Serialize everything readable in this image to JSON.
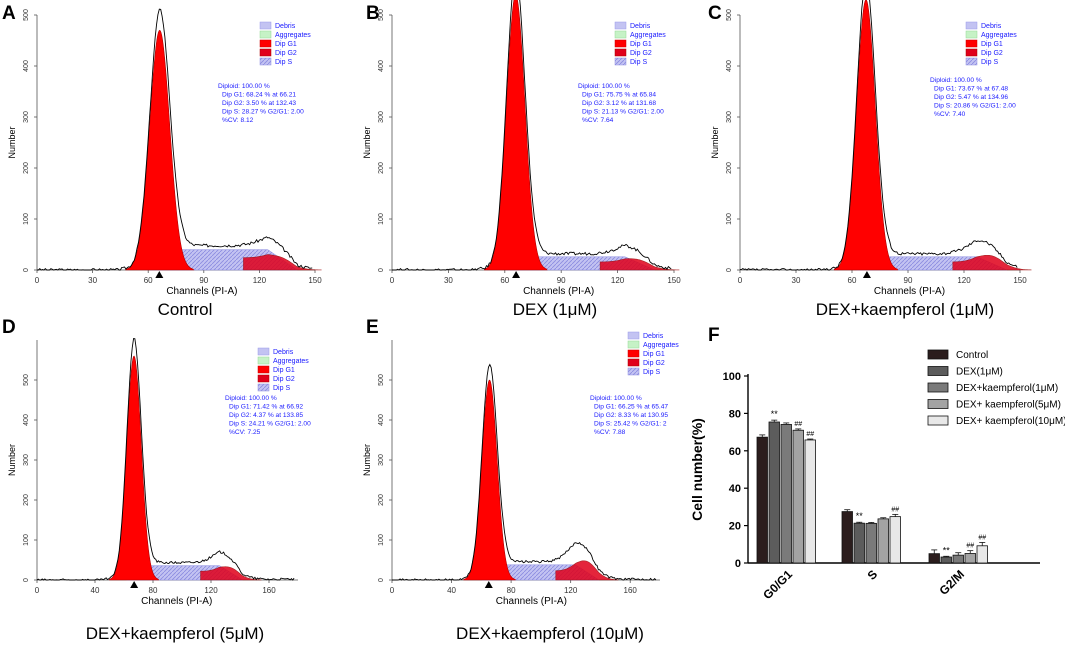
{
  "panels": [
    {
      "letter": "A",
      "caption": "Control",
      "xlabel": "Channels (PI-A)",
      "ylabel": "Number",
      "xticks": [
        "0",
        "30",
        "60",
        "90",
        "120",
        "150"
      ],
      "xmax": 150,
      "yticks": [
        "0",
        "100",
        "200",
        "300",
        "400",
        "500"
      ],
      "ymax": 500,
      "legend": [
        "Debris",
        "Aggregates",
        "Dip G1",
        "Dip G2",
        "Dip S"
      ],
      "stats": [
        "Diploid: 100.00 %",
        "Dip G1: 68.24 % at 66.21",
        "Dip G2: 3.50 % at 132.43",
        "Dip S: 28.27 %    G2/G1: 2.00",
        "%CV: 8.12"
      ],
      "g1": {
        "mu": 66.2,
        "sd": 5.4,
        "peak": 470
      },
      "g2": {
        "mu": 132.4,
        "sd": 7,
        "peak": 12
      },
      "s": {
        "h": 40
      },
      "marker": 66
    },
    {
      "letter": "B",
      "caption": "DEX (1μM)",
      "xlabel": "Channels (PI-A)",
      "ylabel": "Number",
      "xticks": [
        "0",
        "30",
        "60",
        "90",
        "120",
        "150"
      ],
      "xmax": 150,
      "yticks": [
        "0",
        "100",
        "200",
        "300",
        "400",
        "500"
      ],
      "ymax": 500,
      "legend": [
        "Debris",
        "Aggregates",
        "Dip G1",
        "Dip G2",
        "Dip S"
      ],
      "stats": [
        "Diploid: 100.00 %",
        "Dip G1: 75.75 % at 65.84",
        "Dip G2: 3.12 % at 131.68",
        "Dip S: 21.13 %    G2/G1: 2.00",
        "%CV: 7.64"
      ],
      "g1": {
        "mu": 65.8,
        "sd": 4.9,
        "peak": 540
      },
      "g2": {
        "mu": 131.7,
        "sd": 7,
        "peak": 12
      },
      "s": {
        "h": 26
      },
      "marker": 66
    },
    {
      "letter": "C",
      "caption": "DEX+kaempferol (1μM)",
      "xlabel": "Channels (PI-A)",
      "ylabel": "Number",
      "xticks": [
        "0",
        "30",
        "60",
        "90",
        "120",
        "150"
      ],
      "xmax": 150,
      "yticks": [
        "0",
        "100",
        "200",
        "300",
        "400",
        "500"
      ],
      "ymax": 500,
      "legend": [
        "Debris",
        "Aggregates",
        "Dip G1",
        "Dip G2",
        "Dip S"
      ],
      "stats": [
        "Diploid: 100.00 %",
        "Dip G1: 73.67 % at 67.48",
        "Dip G2: 5.47 % at 134.96",
        "Dip S: 20.86 %    G2/G1: 2.00",
        "%CV: 7.40"
      ],
      "g1": {
        "mu": 67.5,
        "sd": 5.0,
        "peak": 530
      },
      "g2": {
        "mu": 135,
        "sd": 7,
        "peak": 20
      },
      "s": {
        "h": 26
      },
      "marker": 68
    },
    {
      "letter": "D",
      "caption": "DEX+kaempferol (5μM)",
      "xlabel": "Channels (PI-A)",
      "ylabel": "Number",
      "xticks": [
        "0",
        "40",
        "80",
        "120",
        "160"
      ],
      "xmax": 180,
      "yticks": [
        "0",
        "100",
        "200",
        "300",
        "400",
        "500"
      ],
      "ymax": 600,
      "legend": [
        "Debris",
        "Aggregates",
        "Dip G1",
        "Dip G2",
        "Dip S"
      ],
      "stats": [
        "Diploid: 100.00 %",
        "Dip G1: 71.42 % at 66.92",
        "Dip G2: 4.37 % at 133.85",
        "Dip S: 24.21 %    G2/G1: 2.00",
        "%CV: 7.25"
      ],
      "g1": {
        "mu": 66.9,
        "sd": 5.0,
        "peak": 560
      },
      "g2": {
        "mu": 133.8,
        "sd": 7,
        "peak": 20
      },
      "s": {
        "h": 36
      },
      "marker": 67
    },
    {
      "letter": "E",
      "caption": "DEX+kaempferol (10μM)",
      "xlabel": "Channels (PI-A)",
      "ylabel": "Number",
      "xticks": [
        "0",
        "40",
        "80",
        "120",
        "160"
      ],
      "xmax": 180,
      "yticks": [
        "0",
        "100",
        "200",
        "300",
        "400",
        "500"
      ],
      "ymax": 600,
      "legend": [
        "Debris",
        "Aggregates",
        "Dip G1",
        "Dip G2",
        "Dip S"
      ],
      "stats": [
        "Diploid: 100.00 %",
        "Dip G1: 66.25 % at 65.47",
        "Dip G2: 8.33 % at 130.95",
        "Dip S: 25.42 %    G2/G1: 2",
        "%CV: 7.88"
      ],
      "g1": {
        "mu": 65.5,
        "sd": 5.1,
        "peak": 500
      },
      "g2": {
        "mu": 131,
        "sd": 7,
        "peak": 35
      },
      "s": {
        "h": 38
      },
      "marker": 65
    }
  ],
  "chart_data": {
    "type": "bar",
    "letter": "F",
    "title": "",
    "xlabel": "",
    "ylabel": "Cell number(%)",
    "ylim": [
      0,
      100
    ],
    "yticks": [
      "0",
      "20",
      "40",
      "60",
      "80",
      "100"
    ],
    "categories": [
      "G0/G1",
      "S",
      "G2/M"
    ],
    "series": [
      {
        "name": "Control",
        "color": "#2b1d1d",
        "values": [
          67.3,
          27.5,
          5.0
        ],
        "errors": [
          1.2,
          1.0,
          2.0
        ],
        "marks": [
          "",
          "",
          ""
        ]
      },
      {
        "name": "DEX(1μM)",
        "color": "#5c5c5c",
        "values": [
          75.4,
          21.3,
          3.2
        ],
        "errors": [
          1.0,
          0.5,
          0.4
        ],
        "marks": [
          "**",
          "**",
          "**"
        ]
      },
      {
        "name": "DEX+kaempferol(1μM)",
        "color": "#7a7a7a",
        "values": [
          74.1,
          21.2,
          4.2
        ],
        "errors": [
          0.8,
          0.5,
          1.3
        ],
        "marks": [
          "",
          "",
          ""
        ]
      },
      {
        "name": "DEX+ kaempferol(5μM)",
        "color": "#a3a3a3",
        "values": [
          71.0,
          23.6,
          5.1
        ],
        "errors": [
          0.7,
          0.6,
          1.5
        ],
        "marks": [
          "##",
          "",
          "##"
        ]
      },
      {
        "name": "DEX+ kaempferol(10μM)",
        "color": "#e8e8e8",
        "values": [
          65.8,
          24.8,
          9.2
        ],
        "errors": [
          0.5,
          1.2,
          1.8
        ],
        "marks": [
          "##",
          "##",
          "##"
        ]
      }
    ]
  }
}
